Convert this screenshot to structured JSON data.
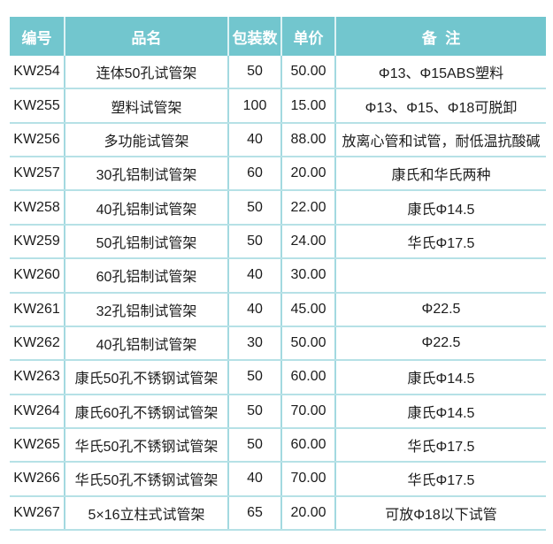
{
  "colors": {
    "header_bg": "#72c6ce",
    "header_text": "#ffffff",
    "header_divider": "#ddf2f4",
    "row_line": "#b6e1e6",
    "column_line": "#a3d9e0",
    "body_text": "#1c1c1c",
    "page_bg": "#ffffff"
  },
  "table": {
    "columns": [
      {
        "key": "code",
        "label": "编号"
      },
      {
        "key": "name",
        "label": "品名"
      },
      {
        "key": "pack_qty",
        "label": "包装数"
      },
      {
        "key": "unit_price",
        "label": "单价"
      },
      {
        "key": "remark",
        "label": "备  注"
      }
    ],
    "rows": [
      {
        "code": "KW254",
        "name": "连体50孔试管架",
        "pack_qty": "50",
        "unit_price": "50.00",
        "remark": "Φ13、Φ15ABS塑料"
      },
      {
        "code": "KW255",
        "name": "塑料试管架",
        "pack_qty": "100",
        "unit_price": "15.00",
        "remark": "Φ13、Φ15、Φ18可脱卸"
      },
      {
        "code": "KW256",
        "name": "多功能试管架",
        "pack_qty": "40",
        "unit_price": "88.00",
        "remark": "放离心管和试管，耐低温抗酸碱"
      },
      {
        "code": "KW257",
        "name": "30孔铝制试管架",
        "pack_qty": "60",
        "unit_price": "20.00",
        "remark": "康氏和华氏两种"
      },
      {
        "code": "KW258",
        "name": "40孔铝制试管架",
        "pack_qty": "50",
        "unit_price": "22.00",
        "remark": "康氏Φ14.5"
      },
      {
        "code": "KW259",
        "name": "50孔铝制试管架",
        "pack_qty": "50",
        "unit_price": "24.00",
        "remark": "华氏Φ17.5"
      },
      {
        "code": "KW260",
        "name": "60孔铝制试管架",
        "pack_qty": "40",
        "unit_price": "30.00",
        "remark": ""
      },
      {
        "code": "KW261",
        "name": "32孔铝制试管架",
        "pack_qty": "40",
        "unit_price": "45.00",
        "remark": "Φ22.5"
      },
      {
        "code": "KW262",
        "name": "40孔铝制试管架",
        "pack_qty": "30",
        "unit_price": "50.00",
        "remark": "Φ22.5"
      },
      {
        "code": "KW263",
        "name": "康氏50孔不锈钢试管架",
        "pack_qty": "50",
        "unit_price": "60.00",
        "remark": "康氏Φ14.5"
      },
      {
        "code": "KW264",
        "name": "康氏60孔不锈钢试管架",
        "pack_qty": "50",
        "unit_price": "70.00",
        "remark": "康氏Φ14.5"
      },
      {
        "code": "KW265",
        "name": "华氏50孔不锈钢试管架",
        "pack_qty": "50",
        "unit_price": "60.00",
        "remark": "华氏Φ17.5"
      },
      {
        "code": "KW266",
        "name": "华氏50孔不锈钢试管架",
        "pack_qty": "40",
        "unit_price": "70.00",
        "remark": "华氏Φ17.5"
      },
      {
        "code": "KW267",
        "name": "5×16立柱式试管架",
        "pack_qty": "65",
        "unit_price": "20.00",
        "remark": "可放Φ18以下试管"
      }
    ]
  }
}
